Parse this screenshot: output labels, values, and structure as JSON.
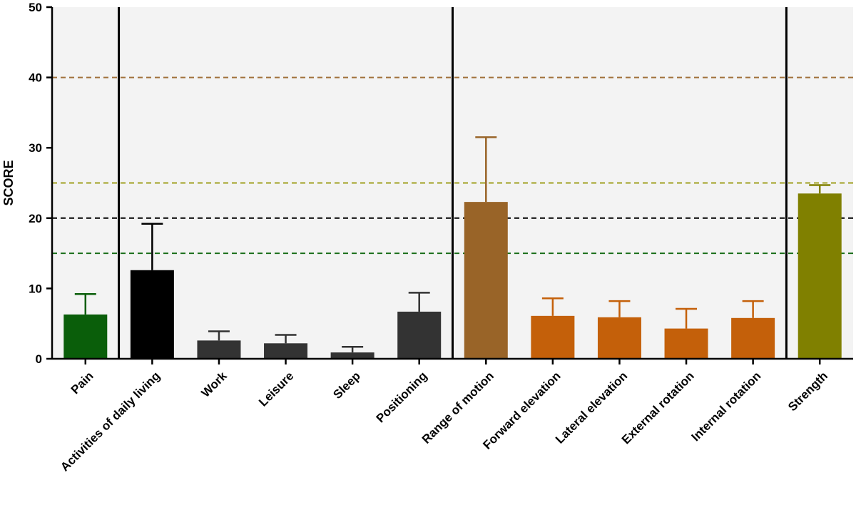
{
  "chart_data": {
    "type": "bar",
    "title": "",
    "xlabel": "",
    "ylabel": "SCORE",
    "ylim": [
      0,
      50
    ],
    "yticks": [
      0,
      10,
      20,
      30,
      40,
      50
    ],
    "grid": false,
    "background_color": "#f3f3f3",
    "categories": [
      "Pain",
      "Activities of daily living",
      "Work",
      "Leisure",
      "Sleep",
      "Positioning",
      "Range of motion",
      "Forward elevation",
      "Lateral elevation",
      "External rotation",
      "Internal rotation",
      "Strength"
    ],
    "values": [
      6.3,
      12.6,
      2.6,
      2.2,
      0.9,
      6.7,
      22.3,
      6.1,
      5.9,
      4.3,
      5.8,
      23.5
    ],
    "errors": [
      2.9,
      6.6,
      1.3,
      1.2,
      0.8,
      2.7,
      9.2,
      2.5,
      2.3,
      2.8,
      2.4,
      1.2
    ],
    "bar_colors": [
      "#0a5e0a",
      "#000000",
      "#333333",
      "#333333",
      "#333333",
      "#333333",
      "#996428",
      "#c4600a",
      "#c4600a",
      "#c4600a",
      "#c4600a",
      "#808000"
    ],
    "section_dividers_after": [
      0,
      5,
      10
    ],
    "reference_lines": [
      {
        "value": 40,
        "color": "#a0703a"
      },
      {
        "value": 25,
        "color": "#a0a020"
      },
      {
        "value": 20,
        "color": "#000000"
      },
      {
        "value": 15,
        "color": "#1a6e1a"
      }
    ]
  }
}
